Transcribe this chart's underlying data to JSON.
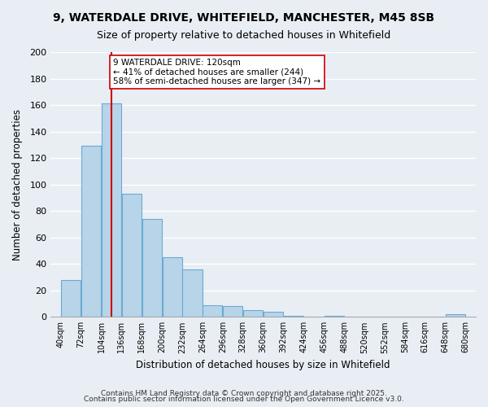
{
  "title": "9, WATERDALE DRIVE, WHITEFIELD, MANCHESTER, M45 8SB",
  "subtitle": "Size of property relative to detached houses in Whitefield",
  "xlabel": "Distribution of detached houses by size in Whitefield",
  "ylabel": "Number of detached properties",
  "footnote1": "Contains HM Land Registry data © Crown copyright and database right 2025.",
  "footnote2": "Contains public sector information licensed under the Open Government Licence v3.0.",
  "bins": [
    40,
    72,
    104,
    136,
    168,
    200,
    232,
    264,
    296,
    328,
    360,
    392,
    424,
    456,
    488,
    520,
    552,
    584,
    616,
    648
  ],
  "bar_heights": [
    28,
    129,
    161,
    93,
    74,
    45,
    36,
    9,
    8,
    5,
    4,
    1,
    0,
    1,
    0,
    0,
    0,
    0,
    0,
    2
  ],
  "bar_color": "#b8d4e8",
  "bar_edge_color": "#6aaad4",
  "bg_color": "#e8eef4",
  "grid_color": "#ffffff",
  "property_line_x": 120,
  "property_line_color": "#cc0000",
  "annotation_text": "9 WATERDALE DRIVE: 120sqm\n← 41% of detached houses are smaller (244)\n58% of semi-detached houses are larger (347) →",
  "annotation_box_color": "#ffffff",
  "annotation_box_edge": "#cc0000",
  "ylim": [
    0,
    200
  ],
  "yticks": [
    0,
    20,
    40,
    60,
    80,
    100,
    120,
    140,
    160,
    180,
    200
  ],
  "tick_labels": [
    "40sqm",
    "72sqm",
    "104sqm",
    "136sqm",
    "168sqm",
    "200sqm",
    "232sqm",
    "264sqm",
    "296sqm",
    "328sqm",
    "360sqm",
    "392sqm",
    "424sqm",
    "456sqm",
    "488sqm",
    "520sqm",
    "552sqm",
    "584sqm",
    "616sqm",
    "648sqm",
    "680sqm"
  ]
}
